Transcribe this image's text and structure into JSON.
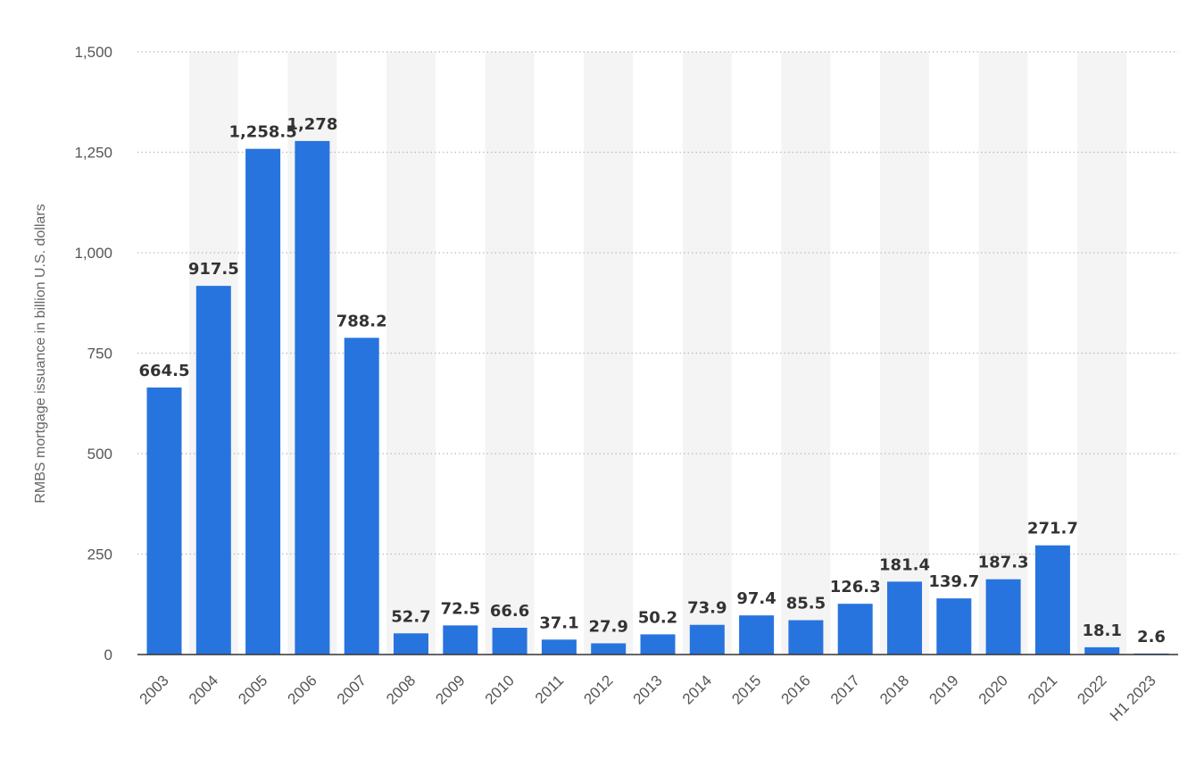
{
  "chart_data": {
    "type": "bar",
    "categories": [
      "2003",
      "2004",
      "2005",
      "2006",
      "2007",
      "2008",
      "2009",
      "2010",
      "2011",
      "2012",
      "2013",
      "2014",
      "2015",
      "2016",
      "2017",
      "2018",
      "2019",
      "2020",
      "2021",
      "2022",
      "H1 2023"
    ],
    "values": [
      664.5,
      917.5,
      1258.5,
      1278,
      788.2,
      52.7,
      72.5,
      66.6,
      37.1,
      27.9,
      50.2,
      73.9,
      97.4,
      85.5,
      126.3,
      181.4,
      139.7,
      187.3,
      271.7,
      18.1,
      2.6
    ],
    "value_labels": [
      "664.5",
      "917.5",
      "1,258.5",
      "1,278",
      "788.2",
      "52.7",
      "72.5",
      "66.6",
      "37.1",
      "27.9",
      "50.2",
      "73.9",
      "97.4",
      "85.5",
      "126.3",
      "181.4",
      "139.7",
      "187.3",
      "271.7",
      "18.1",
      "2.6"
    ],
    "ylabel": "RMBS mortgage issuance in billion U.S. dollars",
    "ylim": [
      0,
      1500
    ],
    "yticks": [
      0,
      250,
      500,
      750,
      1000,
      1250,
      1500
    ],
    "ytick_labels": [
      "0",
      "250",
      "500",
      "750",
      "1,000",
      "1,250",
      "1,500"
    ],
    "grid": true,
    "bar_color": "#2874de",
    "band_color": "#f4f4f4"
  }
}
